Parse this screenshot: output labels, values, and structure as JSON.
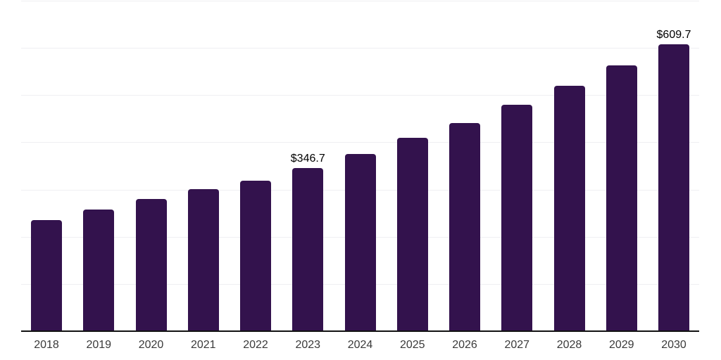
{
  "chart_data": {
    "type": "bar",
    "title": "",
    "xlabel": "",
    "ylabel": "",
    "categories": [
      "2018",
      "2019",
      "2020",
      "2021",
      "2022",
      "2023",
      "2024",
      "2025",
      "2026",
      "2027",
      "2028",
      "2029",
      "2030"
    ],
    "values": [
      237.5,
      258.6,
      280.8,
      302.1,
      320.4,
      346.7,
      377.5,
      411.2,
      443.0,
      480.6,
      521.3,
      564.5,
      609.7
    ],
    "data_labels": [
      "",
      "",
      "",
      "",
      "",
      "$346.7",
      "",
      "",
      "",
      "",
      "",
      "",
      "$609.7"
    ],
    "ylim": [
      0,
      700
    ],
    "gridline_step": 100,
    "grid": "horizontal-only",
    "legend": "none",
    "y_tick_labels_visible": false
  },
  "colors": {
    "background": "#ffffff",
    "bar": "#33124d",
    "gridline": "#efeff2",
    "axis_line": "#111111",
    "tick_label": "#3a3a3a",
    "data_label": "#000000"
  }
}
